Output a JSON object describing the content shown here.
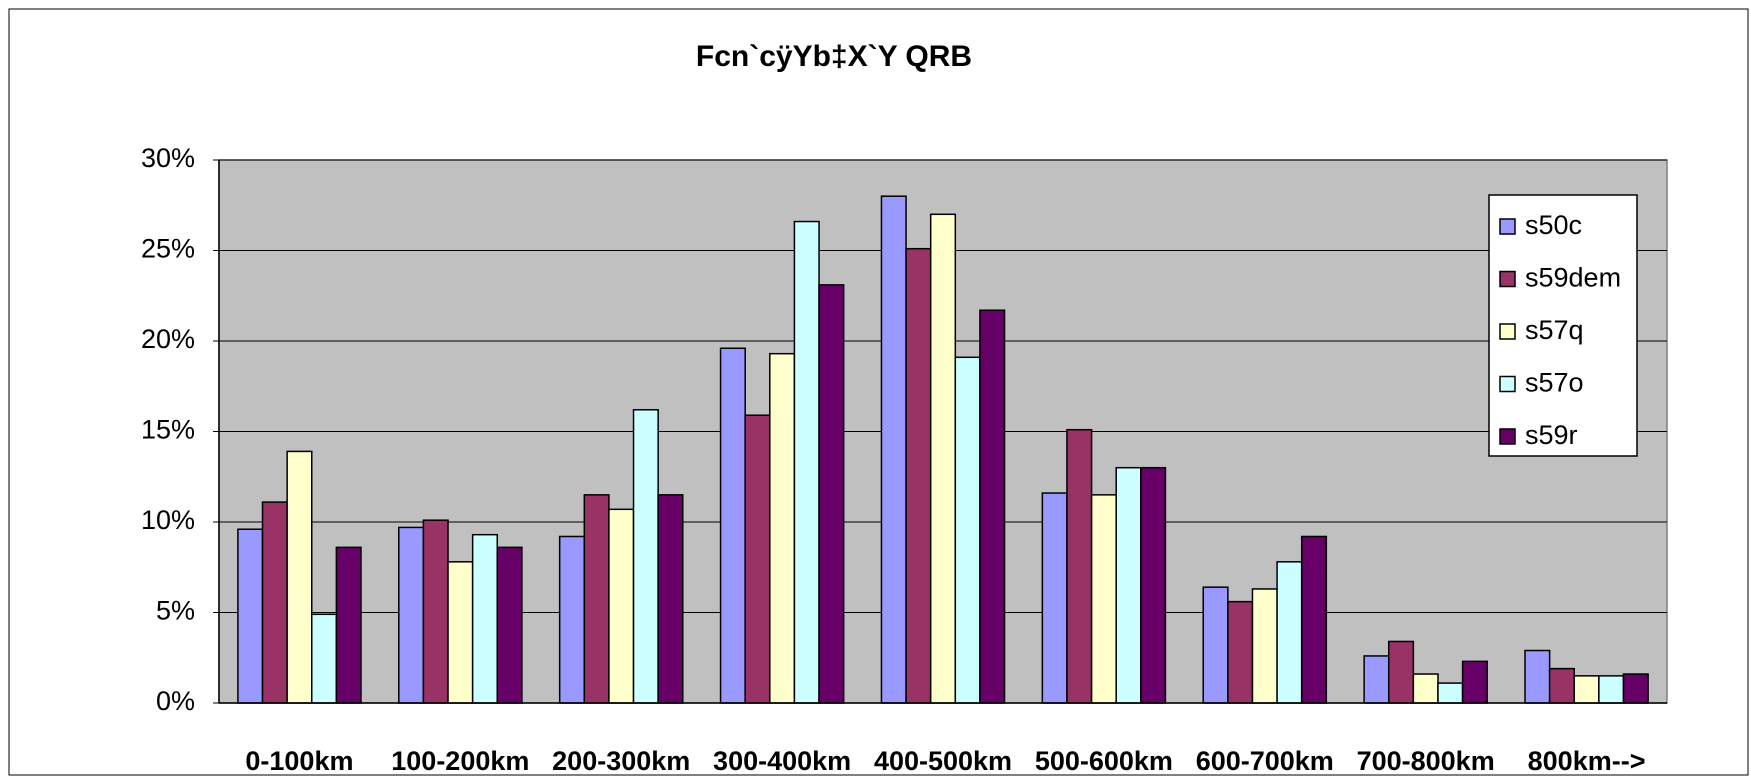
{
  "chart_data": {
    "type": "bar",
    "title": "Fcn`cÿYb‡X`Y QRB",
    "categories": [
      "0-100km",
      "100-200km",
      "200-300km",
      "300-400km",
      "400-500km",
      "500-600km",
      "600-700km",
      "700-800km",
      "800km-->"
    ],
    "series": [
      {
        "name": "s50c",
        "color": "#9999ff",
        "values": [
          9.6,
          9.7,
          9.2,
          19.6,
          28.0,
          11.6,
          6.4,
          2.6,
          2.9
        ]
      },
      {
        "name": "s59dem",
        "color": "#993366",
        "values": [
          11.1,
          10.1,
          11.5,
          15.9,
          25.1,
          15.1,
          5.6,
          3.4,
          1.9
        ]
      },
      {
        "name": "s57q",
        "color": "#ffffcc",
        "values": [
          13.9,
          7.8,
          10.7,
          19.3,
          27.0,
          11.5,
          6.3,
          1.6,
          1.5
        ]
      },
      {
        "name": "s57o",
        "color": "#ccffff",
        "values": [
          4.9,
          9.3,
          16.2,
          26.6,
          19.1,
          13.0,
          7.8,
          1.1,
          1.5
        ]
      },
      {
        "name": "s59r",
        "color": "#660066",
        "values": [
          8.6,
          8.6,
          11.5,
          23.1,
          21.7,
          13.0,
          9.2,
          2.3,
          1.6
        ]
      }
    ],
    "ylim": [
      0,
      30
    ],
    "yticks": [
      {
        "value": 0,
        "label": "0%"
      },
      {
        "value": 5,
        "label": "5%"
      },
      {
        "value": 10,
        "label": "10%"
      },
      {
        "value": 15,
        "label": "15%"
      },
      {
        "value": 20,
        "label": "20%"
      },
      {
        "value": 25,
        "label": "25%"
      },
      {
        "value": 30,
        "label": "30%"
      }
    ],
    "grid": true,
    "legend": "upper right",
    "plot_background": "#c0c0c0"
  }
}
